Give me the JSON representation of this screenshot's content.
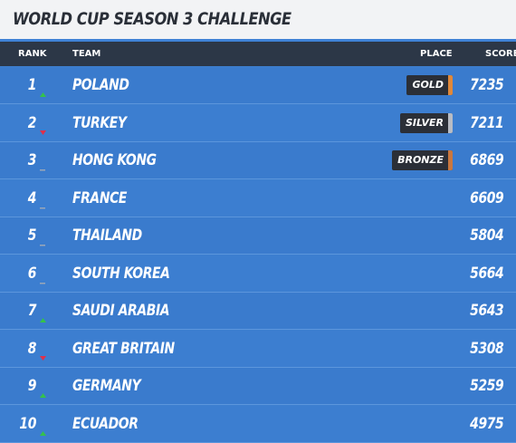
{
  "header": {
    "title": "WORLD CUP SEASON 3 CHALLENGE"
  },
  "table": {
    "columns": [
      "RANK",
      "TEAM",
      "PLACE",
      "SCORE"
    ],
    "rows": [
      {
        "rank": "1",
        "trend": "up",
        "team": "POLAND",
        "place": {
          "label": "GOLD",
          "color": "#e0883a"
        },
        "score": "7235"
      },
      {
        "rank": "2",
        "trend": "down",
        "team": "TURKEY",
        "place": {
          "label": "SILVER",
          "color": "#b8bcc4"
        },
        "score": "7211"
      },
      {
        "rank": "3",
        "trend": "none",
        "team": "HONG KONG",
        "place": {
          "label": "BRONZE",
          "color": "#c9773f"
        },
        "score": "6869"
      },
      {
        "rank": "4",
        "trend": "none",
        "team": "FRANCE",
        "score": "6609"
      },
      {
        "rank": "5",
        "trend": "none",
        "team": "THAILAND",
        "score": "5804"
      },
      {
        "rank": "6",
        "trend": "none",
        "team": "SOUTH KOREA",
        "score": "5664"
      },
      {
        "rank": "7",
        "trend": "up",
        "team": "SAUDI ARABIA",
        "score": "5643"
      },
      {
        "rank": "8",
        "trend": "down",
        "team": "GREAT BRITAIN",
        "score": "5308"
      },
      {
        "rank": "9",
        "trend": "up",
        "team": "GERMANY",
        "score": "5259"
      },
      {
        "rank": "10",
        "trend": "up",
        "team": "ECUADOR",
        "score": "4975"
      }
    ]
  }
}
